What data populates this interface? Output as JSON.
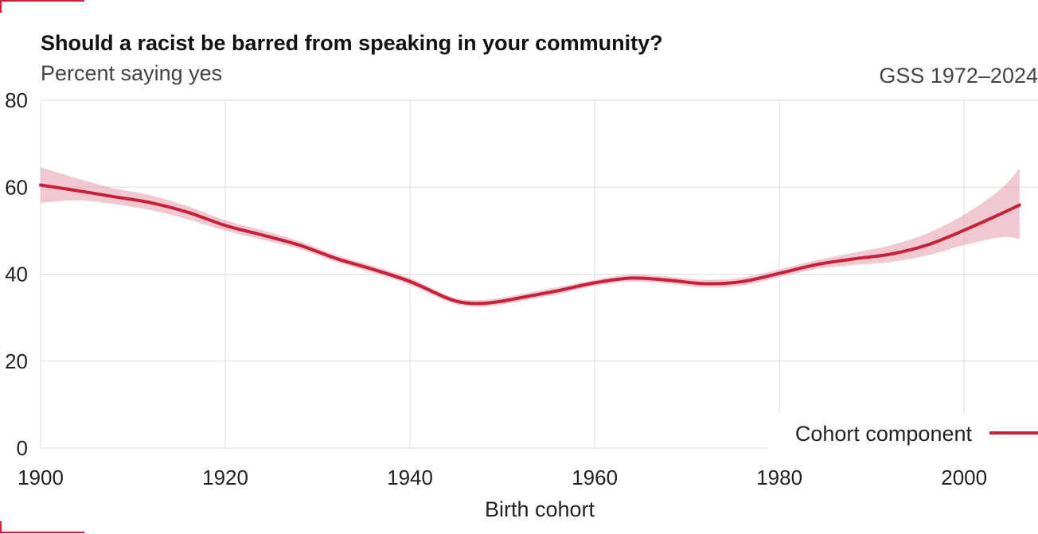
{
  "chart_data": {
    "type": "line",
    "title": "Should a racist be barred from speaking in your community?",
    "subtitle": "Percent saying yes",
    "source": "GSS 1972–2024",
    "xlabel": "Birth cohort",
    "ylabel": "",
    "xlim": [
      1900,
      2008
    ],
    "ylim": [
      0,
      80
    ],
    "x_ticks": [
      1900,
      1920,
      1940,
      1960,
      1980,
      2000
    ],
    "y_ticks": [
      0,
      20,
      40,
      60,
      80
    ],
    "grid": true,
    "legend_position": "bottom-right",
    "colors": {
      "line": "#c8203a",
      "band": "#e6a3b0"
    },
    "series": [
      {
        "name": "Cohort component",
        "x": [
          1900,
          1904,
          1908,
          1912,
          1916,
          1920,
          1924,
          1928,
          1932,
          1936,
          1940,
          1944,
          1946,
          1948,
          1950,
          1952,
          1956,
          1960,
          1964,
          1968,
          1972,
          1976,
          1980,
          1984,
          1988,
          1992,
          1996,
          2000,
          2004,
          2006
        ],
        "y": [
          60.5,
          59.2,
          57.8,
          56.4,
          54.2,
          51.2,
          49.0,
          46.7,
          43.6,
          41.1,
          38.3,
          34.5,
          33.4,
          33.3,
          33.8,
          34.6,
          36.2,
          38.0,
          39.1,
          38.6,
          37.8,
          38.3,
          40.2,
          42.2,
          43.5,
          44.6,
          46.7,
          50.1,
          53.9,
          55.9
        ],
        "lower": [
          56.4,
          57.0,
          56.1,
          54.7,
          52.6,
          50.0,
          47.9,
          45.8,
          42.8,
          40.3,
          37.5,
          33.8,
          32.7,
          32.5,
          33.0,
          33.8,
          35.4,
          37.3,
          38.3,
          37.8,
          36.9,
          37.4,
          39.3,
          41.2,
          42.1,
          42.8,
          44.3,
          46.7,
          48.5,
          48.1
        ],
        "upper": [
          64.6,
          62.0,
          59.7,
          58.1,
          55.6,
          52.4,
          50.1,
          47.6,
          44.4,
          41.9,
          39.1,
          35.2,
          34.1,
          34.1,
          34.6,
          35.4,
          37.0,
          38.7,
          39.9,
          39.4,
          38.7,
          39.2,
          41.1,
          43.2,
          44.9,
          46.6,
          49.4,
          53.7,
          59.6,
          64.4
        ]
      }
    ]
  }
}
